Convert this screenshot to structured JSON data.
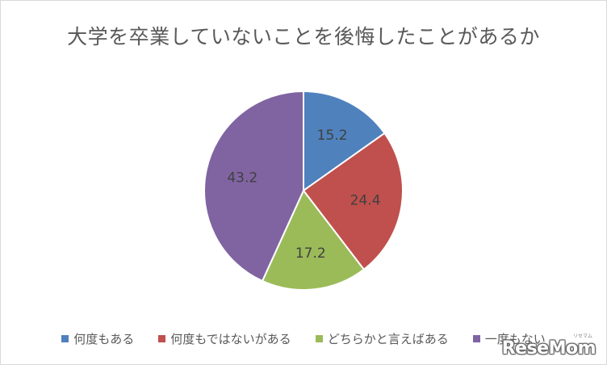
{
  "chart_data": {
    "type": "pie",
    "title": "大学を卒業していないことを後悔したことがあるか",
    "categories": [
      "何度もある",
      "何度もではないがある",
      "どちらかと言えばある",
      "一度もない"
    ],
    "values": [
      15.2,
      24.4,
      17.2,
      43.2
    ],
    "colors": [
      "#4f81bd",
      "#c0504d",
      "#9bbb59",
      "#8064a2"
    ],
    "legend_position": "bottom",
    "start_angle": "12 o'clock, clockwise"
  },
  "watermark": {
    "text": "ReseMom",
    "small_text": "リセマム"
  }
}
